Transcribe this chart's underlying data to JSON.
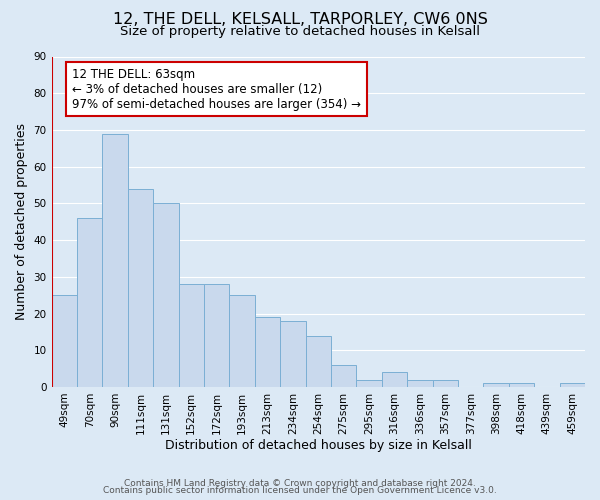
{
  "title_line1": "12, THE DELL, KELSALL, TARPORLEY, CW6 0NS",
  "title_line2": "Size of property relative to detached houses in Kelsall",
  "xlabel": "Distribution of detached houses by size in Kelsall",
  "ylabel": "Number of detached properties",
  "categories": [
    "49sqm",
    "70sqm",
    "90sqm",
    "111sqm",
    "131sqm",
    "152sqm",
    "172sqm",
    "193sqm",
    "213sqm",
    "234sqm",
    "254sqm",
    "275sqm",
    "295sqm",
    "316sqm",
    "336sqm",
    "357sqm",
    "377sqm",
    "398sqm",
    "418sqm",
    "439sqm",
    "459sqm"
  ],
  "values": [
    25,
    46,
    69,
    54,
    50,
    28,
    28,
    25,
    19,
    18,
    14,
    6,
    2,
    4,
    2,
    2,
    0,
    1,
    1,
    0,
    1
  ],
  "bar_color": "#c9d9ed",
  "bar_edge_color": "#7bafd4",
  "background_color": "#dce9f5",
  "grid_color": "#ffffff",
  "annotation_box_text": "12 THE DELL: 63sqm\n← 3% of detached houses are smaller (12)\n97% of semi-detached houses are larger (354) →",
  "annotation_box_color": "#ffffff",
  "annotation_box_edge_color": "#cc0000",
  "marker_line_color": "#cc0000",
  "ylim": [
    0,
    90
  ],
  "yticks": [
    0,
    10,
    20,
    30,
    40,
    50,
    60,
    70,
    80,
    90
  ],
  "footer_line1": "Contains HM Land Registry data © Crown copyright and database right 2024.",
  "footer_line2": "Contains public sector information licensed under the Open Government Licence v3.0.",
  "title_fontsize": 11.5,
  "subtitle_fontsize": 9.5,
  "axis_label_fontsize": 9,
  "tick_fontsize": 7.5,
  "annotation_fontsize": 8.5,
  "footer_fontsize": 6.5
}
